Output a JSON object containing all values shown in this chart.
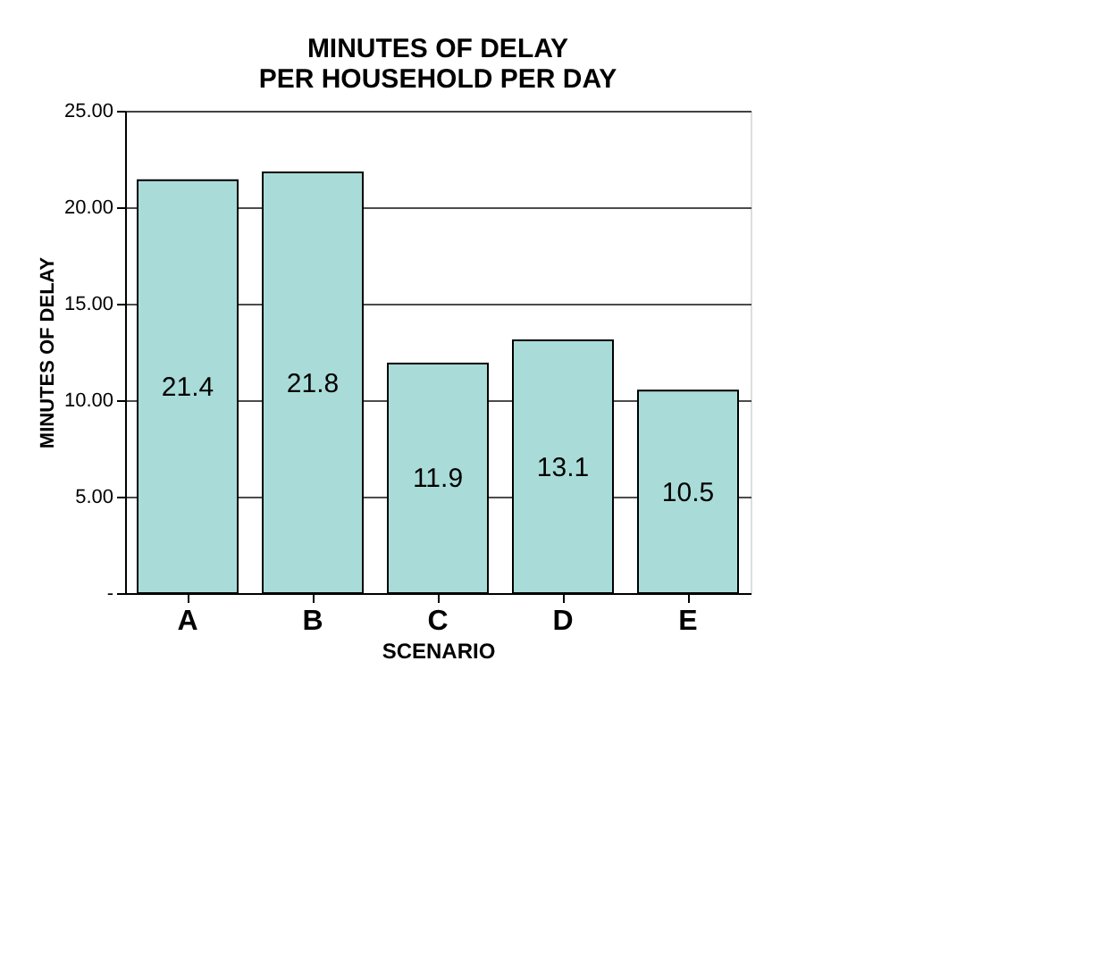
{
  "chart_data": {
    "type": "bar",
    "title": "MINUTES OF DELAY\nPER HOUSEHOLD PER DAY",
    "xlabel": "SCENARIO",
    "ylabel": "MINUTES OF DELAY",
    "categories": [
      "A",
      "B",
      "C",
      "D",
      "E"
    ],
    "values": [
      21.4,
      21.8,
      11.9,
      13.1,
      10.5
    ],
    "color": "#a9dcd8",
    "ylim": [
      0,
      25
    ],
    "yticks": [
      {
        "value": 0,
        "label": "-"
      },
      {
        "value": 5,
        "label": "5.00"
      },
      {
        "value": 10,
        "label": "10.00"
      },
      {
        "value": 15,
        "label": "15.00"
      },
      {
        "value": 20,
        "label": "20.00"
      },
      {
        "value": 25,
        "label": "25.00"
      }
    ],
    "grid": "y",
    "data_labels": true
  }
}
